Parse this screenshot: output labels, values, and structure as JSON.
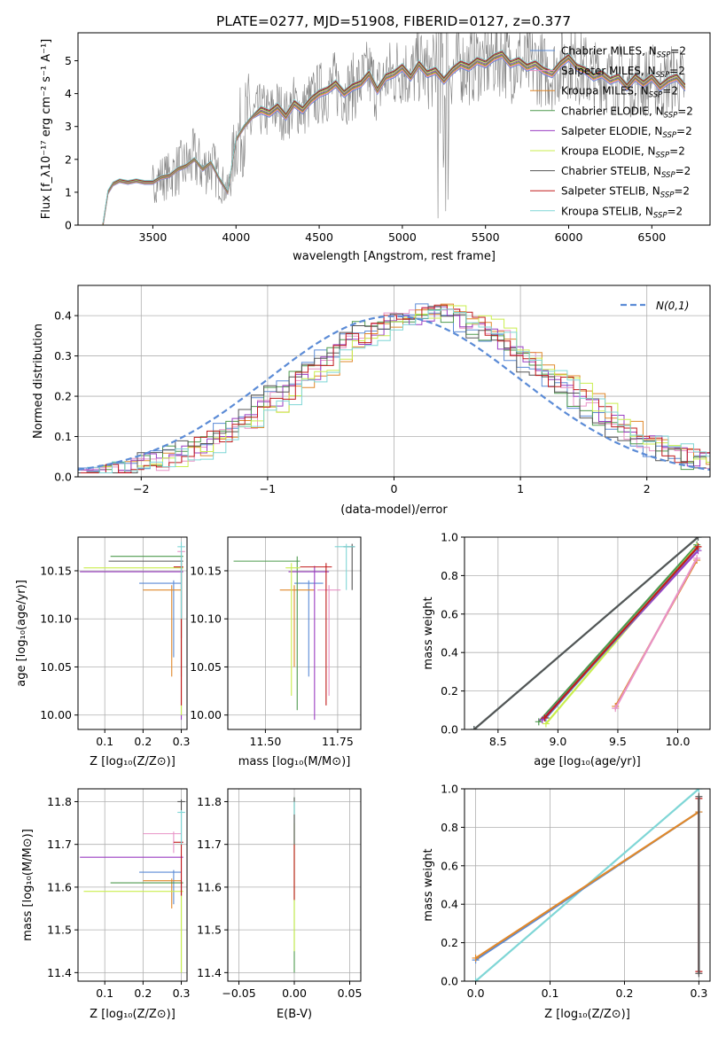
{
  "figure_title": "PLATE=0277, MJD=51908, FIBERID=0127, z=0.377",
  "colors": {
    "Chabrier MILES": "#5b8bd6",
    "Salpeter MILES": "#e892c6",
    "Kroupa MILES": "#e0882a",
    "Chabrier ELODIE": "#4e9a4e",
    "Salpeter ELODIE": "#9a3dc2",
    "Kroupa ELODIE": "#c9ee4e",
    "Chabrier STELIB": "#555555",
    "Salpeter STELIB": "#c11b1b",
    "Kroupa STELIB": "#7fd6d6",
    "data": "#808080",
    "gaussian": "#5b8bd6"
  },
  "spectrum": {
    "xlabel": "wavelength [Angstrom, rest frame]",
    "ylabel": "Flux [f_λ10⁻¹⁷ erg cm⁻² s⁻¹ A⁻¹]",
    "xlim": [
      3050,
      6850
    ],
    "ylim": [
      0,
      5.85
    ],
    "xticks": [
      "3500",
      "4000",
      "4500",
      "5000",
      "5500",
      "6000",
      "6500"
    ],
    "yticks": [
      "0",
      "1",
      "2",
      "3",
      "4",
      "5"
    ],
    "legend_suffix": "=2",
    "legend_nlabel": "N",
    "legend_nsub": "SSP",
    "legend": [
      "Chabrier MILES",
      "Salpeter MILES",
      "Kroupa MILES",
      "Chabrier ELODIE",
      "Salpeter ELODIE",
      "Kroupa ELODIE",
      "Chabrier STELIB",
      "Salpeter STELIB",
      "Kroupa STELIB"
    ],
    "model_curve": {
      "x": [
        3200,
        3230,
        3260,
        3300,
        3350,
        3400,
        3450,
        3500,
        3550,
        3600,
        3650,
        3700,
        3750,
        3800,
        3850,
        3900,
        3950,
        4000,
        4050,
        4100,
        4150,
        4200,
        4250,
        4300,
        4350,
        4400,
        4450,
        4500,
        4550,
        4600,
        4650,
        4700,
        4750,
        4800,
        4850,
        4900,
        4950,
        5000,
        5050,
        5100,
        5150,
        5200,
        5250,
        5300,
        5350,
        5400,
        5450,
        5500,
        5550,
        5600,
        5650,
        5700,
        5750,
        5800,
        5850,
        5900,
        5950,
        6000,
        6050,
        6100,
        6150,
        6200,
        6250,
        6300,
        6350,
        6400,
        6450,
        6500,
        6550,
        6600,
        6650,
        6700
      ],
      "y": [
        0.0,
        1.0,
        1.25,
        1.35,
        1.3,
        1.35,
        1.3,
        1.3,
        1.45,
        1.5,
        1.7,
        1.8,
        2.0,
        1.7,
        1.9,
        1.4,
        1.0,
        2.6,
        3.0,
        3.3,
        3.5,
        3.4,
        3.6,
        3.3,
        3.7,
        3.5,
        3.8,
        4.0,
        4.1,
        4.3,
        4.0,
        4.2,
        4.3,
        4.6,
        4.1,
        4.5,
        4.6,
        4.8,
        4.5,
        4.9,
        4.6,
        4.7,
        4.4,
        4.7,
        4.9,
        4.8,
        5.0,
        4.9,
        5.1,
        5.2,
        4.9,
        5.0,
        4.8,
        4.9,
        4.7,
        4.6,
        4.9,
        5.1,
        4.8,
        4.7,
        4.5,
        4.6,
        4.4,
        4.5,
        4.2,
        4.5,
        4.3,
        4.5,
        4.2,
        4.4,
        4.5,
        4.2
      ]
    }
  },
  "residuals": {
    "xlabel": "(data-model)/error",
    "ylabel": "Normed distribution",
    "xlim": [
      -2.5,
      2.5
    ],
    "ylim": [
      0,
      0.475
    ],
    "xticks": [
      "−2",
      "−1",
      "0",
      "1",
      "2"
    ],
    "yticks": [
      "0.0",
      "0.1",
      "0.2",
      "0.3",
      "0.4"
    ],
    "gaussian_label": "N(0,1)"
  },
  "age_vs_Z": {
    "xlabel": "Z [log₁₀(Z/Z⊙)]",
    "ylabel": "age  [log₁₀(age/yr)]",
    "xlim": [
      0.03,
      0.315
    ],
    "ylim": [
      9.985,
      10.185
    ],
    "xticks": [
      "0.1",
      "0.2",
      "0.3"
    ],
    "yticks": [
      "10.00",
      "10.05",
      "10.10",
      "10.15"
    ],
    "points": [
      {
        "model": "Chabrier MILES",
        "x": 0.28,
        "y": 10.137,
        "xlo": 0.19,
        "xhi": 0.3,
        "ylo": 10.06,
        "yhi": 10.14
      },
      {
        "model": "Salpeter MILES",
        "x": 0.3,
        "y": 10.17,
        "xlo": 0.29,
        "xhi": 0.31,
        "ylo": 10.1,
        "yhi": 10.175
      },
      {
        "model": "Kroupa MILES",
        "x": 0.275,
        "y": 10.13,
        "xlo": 0.2,
        "xhi": 0.3,
        "ylo": 10.04,
        "yhi": 10.135
      },
      {
        "model": "Chabrier ELODIE",
        "x": 0.3,
        "y": 10.165,
        "xlo": 0.115,
        "xhi": 0.305,
        "ylo": 10.04,
        "yhi": 10.17
      },
      {
        "model": "Salpeter ELODIE",
        "x": 0.3,
        "y": 10.149,
        "xlo": 0.035,
        "xhi": 0.305,
        "ylo": 9.995,
        "yhi": 10.155
      },
      {
        "model": "Kroupa ELODIE",
        "x": 0.3,
        "y": 10.153,
        "xlo": 0.045,
        "xhi": 0.305,
        "ylo": 10.0,
        "yhi": 10.158
      },
      {
        "model": "Chabrier STELIB",
        "x": 0.3,
        "y": 10.16,
        "xlo": 0.11,
        "xhi": 0.305,
        "ylo": 10.08,
        "yhi": 10.165
      },
      {
        "model": "Salpeter STELIB",
        "x": 0.3,
        "y": 10.154,
        "xlo": 0.28,
        "xhi": 0.305,
        "ylo": 10.01,
        "yhi": 10.158
      },
      {
        "model": "Kroupa STELIB",
        "x": 0.3,
        "y": 10.175,
        "xlo": 0.29,
        "xhi": 0.31,
        "ylo": 10.1,
        "yhi": 10.18
      }
    ]
  },
  "age_vs_mass": {
    "xlabel": "mass [log₁₀(M/M⊙)]",
    "xlim": [
      11.37,
      11.83
    ],
    "ylim": [
      9.985,
      10.185
    ],
    "xticks": [
      "11.50",
      "11.75"
    ],
    "yticks": [
      "10.00",
      "10.05",
      "10.10",
      "10.15"
    ],
    "points": [
      {
        "model": "Chabrier MILES",
        "x": 11.65,
        "y": 10.137,
        "xlo": 11.6,
        "xhi": 11.7,
        "ylo": 10.04,
        "yhi": 10.14
      },
      {
        "model": "Salpeter MILES",
        "x": 11.72,
        "y": 10.13,
        "xlo": 11.68,
        "xhi": 11.76,
        "ylo": 10.02,
        "yhi": 10.135
      },
      {
        "model": "Kroupa MILES",
        "x": 11.6,
        "y": 10.13,
        "xlo": 11.55,
        "xhi": 11.67,
        "ylo": 10.05,
        "yhi": 10.135
      },
      {
        "model": "Chabrier ELODIE",
        "x": 11.61,
        "y": 10.16,
        "xlo": 11.39,
        "xhi": 11.62,
        "ylo": 10.005,
        "yhi": 10.165
      },
      {
        "model": "Salpeter ELODIE",
        "x": 11.67,
        "y": 10.149,
        "xlo": 11.58,
        "xhi": 11.72,
        "ylo": 9.995,
        "yhi": 10.155
      },
      {
        "model": "Kroupa ELODIE",
        "x": 11.59,
        "y": 10.153,
        "xlo": 11.57,
        "xhi": 11.62,
        "ylo": 10.02,
        "yhi": 10.158
      },
      {
        "model": "Chabrier STELIB",
        "x": 11.8,
        "y": 10.175,
        "xlo": 11.77,
        "xhi": 11.81,
        "ylo": 10.13,
        "yhi": 10.178
      },
      {
        "model": "Salpeter STELIB",
        "x": 11.71,
        "y": 10.154,
        "xlo": 11.62,
        "xhi": 11.73,
        "ylo": 10.01,
        "yhi": 10.158
      },
      {
        "model": "Kroupa STELIB",
        "x": 11.78,
        "y": 10.175,
        "xlo": 11.74,
        "xhi": 11.81,
        "ylo": 10.13,
        "yhi": 10.178
      }
    ]
  },
  "mass_weight_vs_age": {
    "xlabel": "age  [log₁₀(age/yr)]",
    "ylabel": "mass weight",
    "xlim": [
      8.22,
      10.27
    ],
    "ylim": [
      0,
      1.0
    ],
    "xticks": [
      "8.5",
      "9.0",
      "9.5",
      "10.0"
    ],
    "yticks": [
      "0.0",
      "0.2",
      "0.4",
      "0.6",
      "0.8",
      "1.0"
    ],
    "lines": [
      {
        "model": "Kroupa STELIB",
        "x": [
          8.3,
          10.17
        ],
        "y": [
          0.0,
          1.0
        ]
      },
      {
        "model": "Chabrier STELIB",
        "x": [
          8.3,
          10.17
        ],
        "y": [
          0.0,
          1.0
        ]
      },
      {
        "model": "Chabrier ELODIE",
        "x": [
          8.84,
          10.16
        ],
        "y": [
          0.04,
          0.96
        ]
      },
      {
        "model": "Kroupa ELODIE",
        "x": [
          8.9,
          10.16
        ],
        "y": [
          0.03,
          0.95
        ]
      },
      {
        "model": "Salpeter ELODIE",
        "x": [
          8.87,
          10.17
        ],
        "y": [
          0.05,
          0.93
        ]
      },
      {
        "model": "Chabrier MILES",
        "x": [
          8.9,
          10.16
        ],
        "y": [
          0.06,
          0.94
        ]
      },
      {
        "model": "Salpeter STELIB",
        "x": [
          8.89,
          10.17
        ],
        "y": [
          0.06,
          0.95
        ]
      },
      {
        "model": "Kroupa MILES",
        "x": [
          9.48,
          10.16
        ],
        "y": [
          0.12,
          0.88
        ]
      },
      {
        "model": "Salpeter MILES",
        "x": [
          9.48,
          10.16
        ],
        "y": [
          0.11,
          0.89
        ]
      }
    ]
  },
  "mass_vs_Z": {
    "xlabel": "Z [log₁₀(Z/Z⊙)]",
    "ylabel": "mass [log₁₀(M/M⊙)]",
    "xlim": [
      0.03,
      0.315
    ],
    "ylim": [
      11.38,
      11.83
    ],
    "xticks": [
      "0.1",
      "0.2",
      "0.3"
    ],
    "yticks": [
      "11.4",
      "11.5",
      "11.6",
      "11.7",
      "11.8"
    ],
    "points": [
      {
        "model": "Chabrier MILES",
        "x": 0.28,
        "y": 11.635,
        "xlo": 0.19,
        "xhi": 0.3,
        "ylo": 11.56,
        "yhi": 11.64
      },
      {
        "model": "Salpeter MILES",
        "x": 0.28,
        "y": 11.725,
        "xlo": 0.2,
        "xhi": 0.3,
        "ylo": 11.68,
        "yhi": 11.73
      },
      {
        "model": "Kroupa MILES",
        "x": 0.275,
        "y": 11.615,
        "xlo": 0.2,
        "xhi": 0.3,
        "ylo": 11.55,
        "yhi": 11.62
      },
      {
        "model": "Chabrier ELODIE",
        "x": 0.3,
        "y": 11.61,
        "xlo": 0.115,
        "xhi": 0.305,
        "ylo": 11.4,
        "yhi": 11.615
      },
      {
        "model": "Salpeter ELODIE",
        "x": 0.3,
        "y": 11.67,
        "xlo": 0.035,
        "xhi": 0.305,
        "ylo": 11.58,
        "yhi": 11.675
      },
      {
        "model": "Kroupa ELODIE",
        "x": 0.3,
        "y": 11.59,
        "xlo": 0.045,
        "xhi": 0.305,
        "ylo": 11.4,
        "yhi": 11.595
      },
      {
        "model": "Chabrier STELIB",
        "x": 0.3,
        "y": 11.8,
        "xlo": 0.29,
        "xhi": 0.31,
        "ylo": 11.7,
        "yhi": 11.805
      },
      {
        "model": "Salpeter STELIB",
        "x": 0.3,
        "y": 11.705,
        "xlo": 0.28,
        "xhi": 0.305,
        "ylo": 11.58,
        "yhi": 11.71
      },
      {
        "model": "Kroupa STELIB",
        "x": 0.3,
        "y": 11.775,
        "xlo": 0.29,
        "xhi": 0.31,
        "ylo": 11.7,
        "yhi": 11.78
      }
    ]
  },
  "mass_vs_ebv": {
    "xlabel": "E(B-V)",
    "xlim": [
      -0.06,
      0.06
    ],
    "ylim": [
      11.38,
      11.83
    ],
    "xticks": [
      "−0.05",
      "0.00",
      "0.05"
    ],
    "yticks": [
      "11.4",
      "11.5",
      "11.6",
      "11.7",
      "11.8"
    ],
    "points": [
      {
        "model": "Chabrier ELODIE",
        "x": 0.0,
        "ylo": 11.4,
        "yhi": 11.81
      },
      {
        "model": "Kroupa ELODIE",
        "x": 0.0,
        "ylo": 11.45,
        "yhi": 11.75
      },
      {
        "model": "Chabrier STELIB",
        "x": 0.0,
        "ylo": 11.7,
        "yhi": 11.81
      },
      {
        "model": "Salpeter STELIB",
        "x": 0.0,
        "ylo": 11.57,
        "yhi": 11.7
      },
      {
        "model": "Kroupa STELIB",
        "x": 0.0,
        "ylo": 11.77,
        "yhi": 11.8
      }
    ]
  },
  "mass_weight_vs_Z": {
    "xlabel": "Z [log₁₀(Z/Z⊙)]",
    "ylabel": "mass weight",
    "xlim": [
      -0.015,
      0.315
    ],
    "ylim": [
      0,
      1.0
    ],
    "xticks": [
      "0.0",
      "0.1",
      "0.2",
      "0.3"
    ],
    "yticks": [
      "0.0",
      "0.2",
      "0.4",
      "0.6",
      "0.8",
      "1.0"
    ],
    "lines": [
      {
        "model": "Kroupa STELIB",
        "x": [
          0.0,
          0.3
        ],
        "y": [
          0.0,
          1.0
        ]
      },
      {
        "model": "Chabrier MILES",
        "x": [
          0.0,
          0.3
        ],
        "y": [
          0.11,
          0.88
        ]
      },
      {
        "model": "Kroupa MILES",
        "x": [
          0.0,
          0.3
        ],
        "y": [
          0.12,
          0.88
        ]
      },
      {
        "model": "Salpeter STELIB",
        "x": [
          0.3,
          0.3
        ],
        "y": [
          0.05,
          0.95
        ]
      },
      {
        "model": "Chabrier STELIB",
        "x": [
          0.3,
          0.3
        ],
        "y": [
          0.04,
          0.96
        ]
      }
    ]
  }
}
